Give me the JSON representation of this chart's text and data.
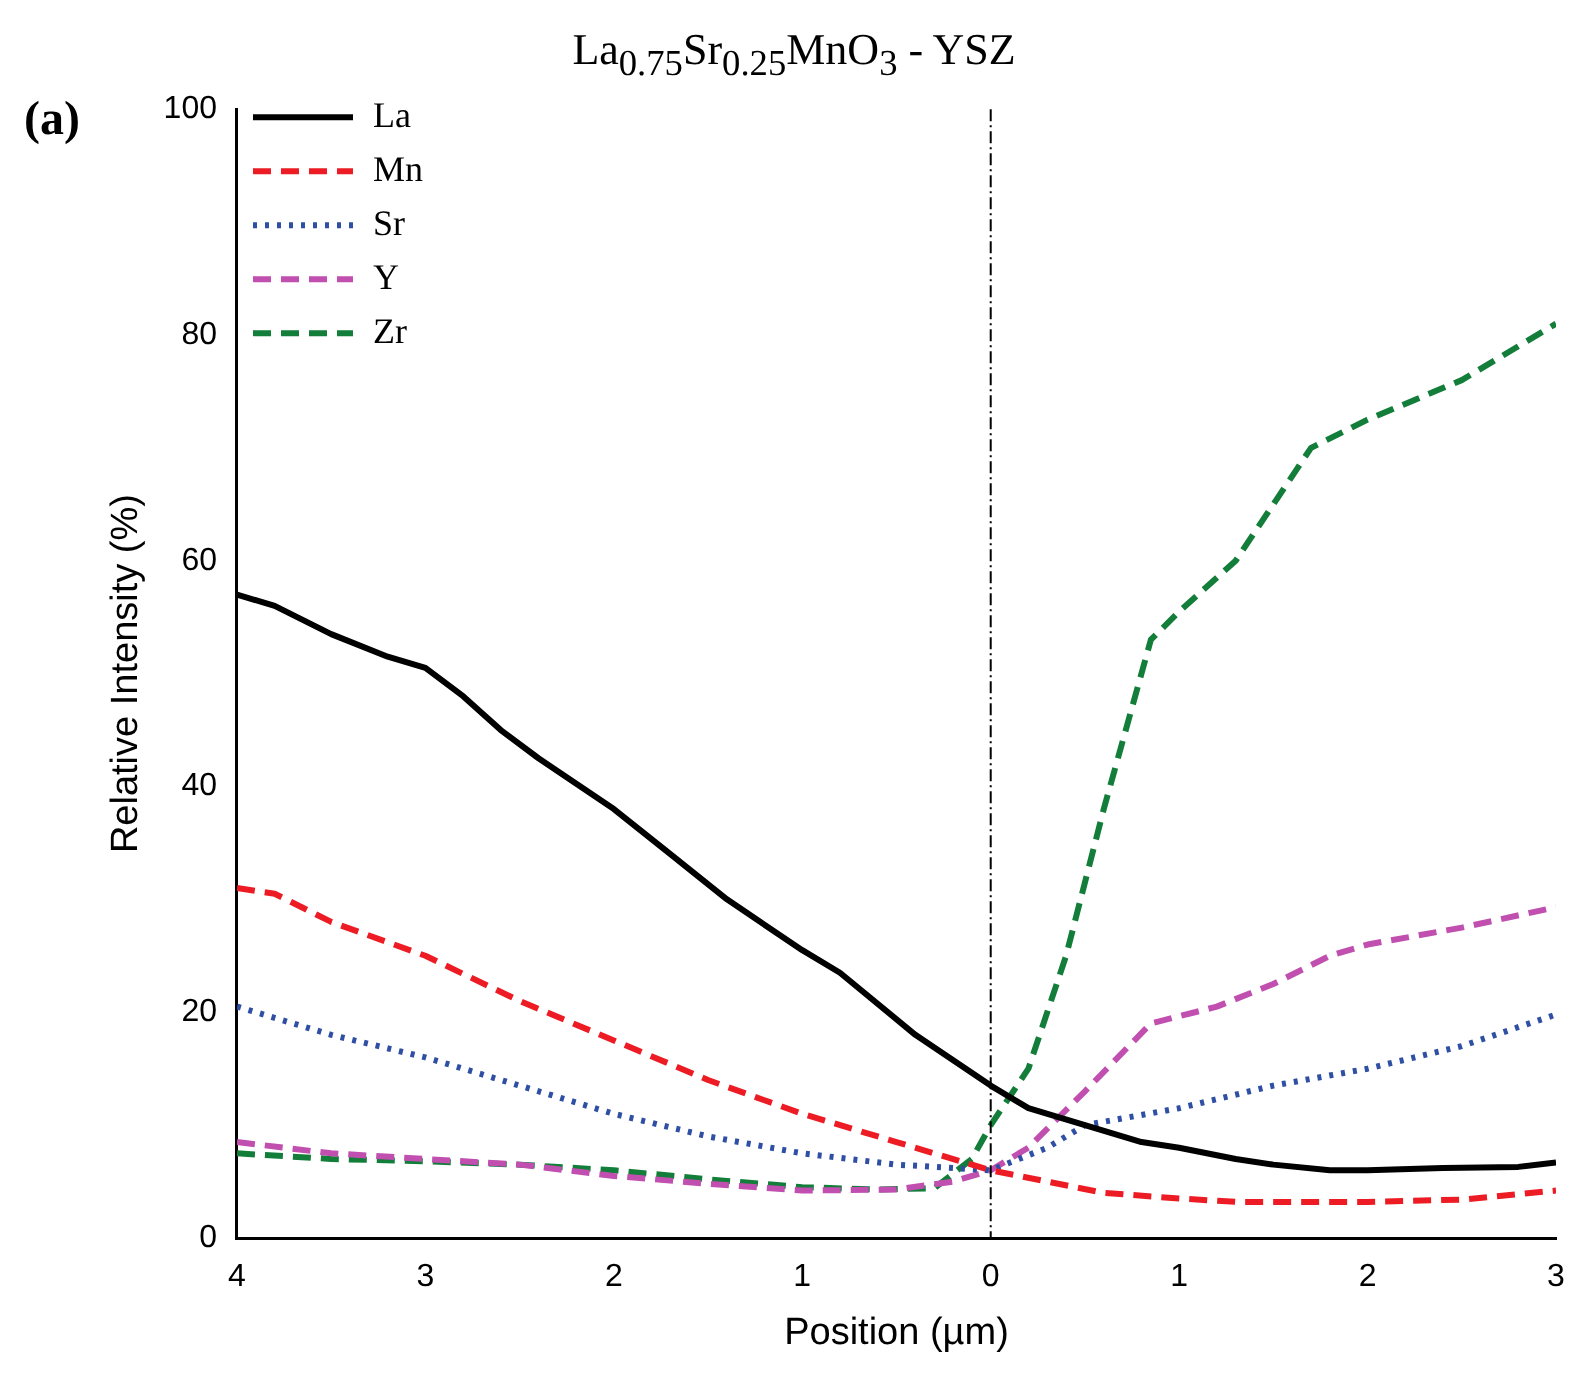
{
  "chart_data": {
    "type": "line",
    "title": "La$_{0.75}$Sr$_{0.25}$MnO$_{3}$ - YSZ",
    "xlabel": "Position (µm)",
    "ylabel": "Relative Intensity (%)",
    "annotations": [
      "(a)"
    ],
    "xlim": [
      -4,
      3
    ],
    "xticks": [
      {
        "value": -4,
        "label": "4"
      },
      {
        "value": -3,
        "label": "3"
      },
      {
        "value": -2,
        "label": "2"
      },
      {
        "value": -1,
        "label": "1"
      },
      0,
      1,
      2,
      3
    ],
    "ylim": [
      0,
      100
    ],
    "yticks": [
      0,
      20,
      40,
      60,
      80,
      100
    ],
    "grid": false,
    "legend": "top left",
    "marker": "none",
    "ref_lines": [
      {
        "axis": "x",
        "value": 0,
        "color": "#000000",
        "line_style": "dashed"
      }
    ],
    "series": [
      {
        "name": "La",
        "color": "#000000",
        "line_style": "solid",
        "x": [
          -4,
          -3.8,
          -3.5,
          -3.2,
          -3,
          -2.8,
          -2.6,
          -2.4,
          -2,
          -1.7,
          -1.4,
          -1,
          -0.8,
          -0.4,
          0,
          0.2,
          0.5,
          0.8,
          1,
          1.3,
          1.5,
          1.8,
          2,
          2.4,
          2.8,
          3
        ],
        "values": [
          57,
          56,
          53.5,
          51.5,
          50.5,
          48,
          45,
          42.5,
          38,
          34,
          30,
          25.5,
          23.5,
          18,
          13.5,
          11.5,
          10,
          8.5,
          8,
          7,
          6.5,
          6,
          6,
          6.2,
          6.3,
          6.7
        ]
      },
      {
        "name": "Mn",
        "color": "#ed1c24",
        "line_style": "dashed",
        "x": [
          -4,
          -3.8,
          -3.5,
          -3,
          -2.5,
          -2,
          -1.5,
          -1,
          -0.5,
          0,
          0.3,
          0.6,
          1,
          1.3,
          2,
          2.5,
          3
        ],
        "values": [
          31,
          30.5,
          28,
          25,
          21,
          17.5,
          14,
          11,
          8.5,
          6,
          5,
          4,
          3.5,
          3.2,
          3.2,
          3.4,
          4.2
        ]
      },
      {
        "name": "Sr",
        "color": "#2e4fa3",
        "line_style": "dotted",
        "x": [
          -4,
          -3.5,
          -3,
          -2.5,
          -2,
          -1.5,
          -1,
          -0.5,
          0,
          0.3,
          0.5,
          1,
          1.5,
          2,
          2.5,
          3
        ],
        "values": [
          20.5,
          18,
          16,
          13.5,
          11,
          9,
          7.5,
          6.5,
          6,
          8,
          10,
          11.5,
          13.5,
          15,
          17,
          19.8
        ]
      },
      {
        "name": "Y",
        "color": "#c04fb0",
        "line_style": "dashed",
        "x": [
          -4,
          -3.5,
          -3,
          -2.5,
          -2,
          -1.5,
          -1,
          -0.5,
          -0.2,
          0,
          0.2,
          0.5,
          0.85,
          1.2,
          1.5,
          1.8,
          2,
          2.5,
          3
        ],
        "values": [
          8.5,
          7.5,
          7,
          6.5,
          5.5,
          4.8,
          4.2,
          4.3,
          5,
          6,
          8,
          13,
          19,
          20.5,
          22.5,
          25,
          26,
          27.5,
          29.3
        ]
      },
      {
        "name": "Zr",
        "color": "#137d3a",
        "line_style": "dashed",
        "x": [
          -4,
          -3.5,
          -3,
          -2.5,
          -2,
          -1.5,
          -1,
          -0.6,
          -0.3,
          -0.1,
          0,
          0.2,
          0.4,
          0.6,
          0.85,
          1,
          1.3,
          1.5,
          1.7,
          2,
          2.5,
          3
        ],
        "values": [
          7.5,
          7,
          6.8,
          6.5,
          6,
          5.2,
          4.5,
          4.3,
          4.4,
          7,
          10,
          15,
          25,
          38,
          53,
          55.5,
          60,
          65,
          70,
          72.5,
          76,
          81
        ]
      }
    ]
  }
}
